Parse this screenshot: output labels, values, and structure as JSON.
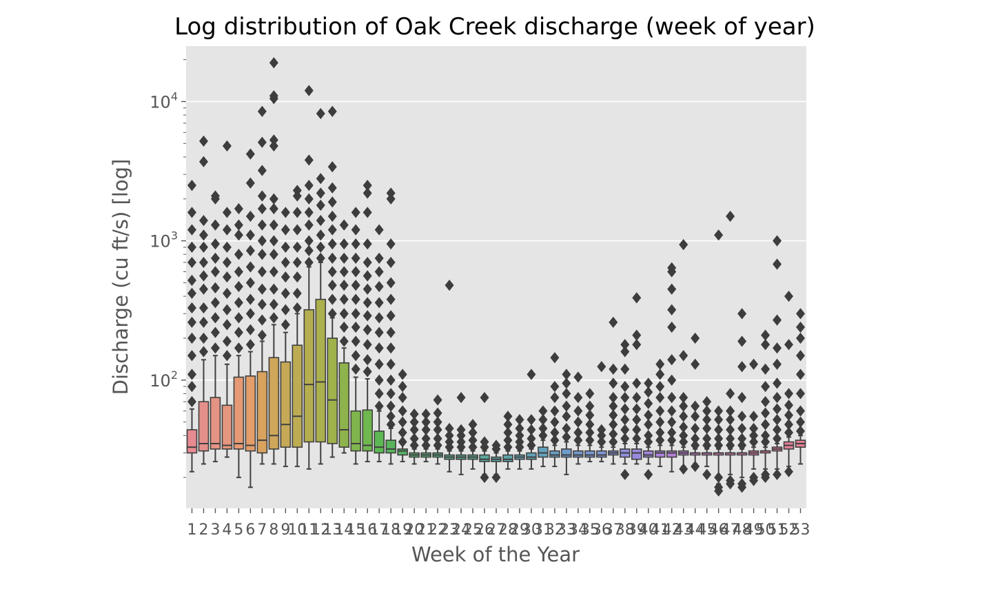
{
  "chart_data": {
    "type": "box",
    "title": "Log distribution of Oak Creek discharge (week of year)",
    "xlabel": "Week of the Year",
    "ylabel": "Discharge (cu ft/s) [log]",
    "y_scale": "log",
    "ylim": [
      12,
      25000
    ],
    "y_ticks": [
      {
        "value": 100,
        "base": "10",
        "exp": "2"
      },
      {
        "value": 1000,
        "base": "10",
        "exp": "3"
      },
      {
        "value": 10000,
        "base": "10",
        "exp": "4"
      }
    ],
    "grid": true,
    "background": "#e5e5e5",
    "grid_color": "#ffffff",
    "outlier_color": "#3d3d3d",
    "categories": [
      "1",
      "2",
      "3",
      "4",
      "5",
      "6",
      "7",
      "8",
      "9",
      "10",
      "11",
      "12",
      "13",
      "14",
      "15",
      "16",
      "17",
      "18",
      "19",
      "20",
      "21",
      "22",
      "23",
      "24",
      "25",
      "26",
      "27",
      "28",
      "29",
      "30",
      "31",
      "32",
      "33",
      "34",
      "35",
      "36",
      "37",
      "38",
      "39",
      "40",
      "41",
      "42",
      "43",
      "44",
      "45",
      "46",
      "47",
      "48",
      "49",
      "50",
      "51",
      "52",
      "53"
    ],
    "colors": [
      "#e58b91",
      "#e4908a",
      "#e49384",
      "#e5967e",
      "#e59a75",
      "#e39e6a",
      "#d9a35e",
      "#cfa65a",
      "#c6a957",
      "#bdac54",
      "#b4ae50",
      "#abb04e",
      "#9fb24c",
      "#8fb34c",
      "#80b54d",
      "#6fb74f",
      "#5db853",
      "#58b55c",
      "#57b266",
      "#57b06f",
      "#58ae78",
      "#58ad80",
      "#59ab87",
      "#5aaa8e",
      "#5ba995",
      "#5ca89c",
      "#5da7a2",
      "#5ea6a9",
      "#60a5b0",
      "#62a4b7",
      "#65a2bd",
      "#69a0c4",
      "#6e9ecb",
      "#749bd1",
      "#7a98d5",
      "#8195d8",
      "#8992da",
      "#918edb",
      "#9a8adb",
      "#a387db",
      "#ac83d9",
      "#b57fd6",
      "#be7cd2",
      "#c67acd",
      "#cd78c7",
      "#d477c0",
      "#d976b9",
      "#dd77b2",
      "#e078ab",
      "#e17aa4",
      "#e27c9e",
      "#e37e98",
      "#e48193"
    ],
    "boxes": [
      {
        "whislo": 22,
        "q1": 30,
        "med": 33,
        "q3": 44,
        "whishi": 62,
        "fliers": [
          70,
          90,
          110,
          150,
          200,
          260,
          330,
          420,
          520,
          700,
          900,
          1200,
          1600,
          2500
        ]
      },
      {
        "whislo": 25,
        "q1": 31,
        "med": 35,
        "q3": 70,
        "whishi": 140,
        "fliers": [
          160,
          200,
          260,
          330,
          450,
          560,
          700,
          900,
          1100,
          1400,
          3700,
          5200
        ]
      },
      {
        "whislo": 26,
        "q1": 32,
        "med": 35,
        "q3": 75,
        "whishi": 150,
        "fliers": [
          170,
          220,
          280,
          360,
          460,
          600,
          750,
          950,
          1300,
          2000,
          2100
        ]
      },
      {
        "whislo": 28,
        "q1": 32,
        "med": 34,
        "q3": 66,
        "whishi": 130,
        "fliers": [
          150,
          190,
          250,
          320,
          420,
          550,
          700,
          900,
          1200,
          1600,
          4800
        ]
      },
      {
        "whislo": 20,
        "q1": 32,
        "med": 35,
        "q3": 105,
        "whishi": 150,
        "fliers": [
          170,
          220,
          280,
          360,
          470,
          600,
          800,
          1100,
          1300,
          1700
        ]
      },
      {
        "whislo": 17,
        "q1": 31,
        "med": 34,
        "q3": 107,
        "whishi": 160,
        "fliers": [
          180,
          230,
          300,
          380,
          500,
          650,
          850,
          1100,
          1500,
          2600,
          4200
        ]
      },
      {
        "whislo": 25,
        "q1": 30,
        "med": 37,
        "q3": 115,
        "whishi": 190,
        "fliers": [
          210,
          270,
          350,
          450,
          600,
          800,
          1000,
          1300,
          1700,
          2100,
          3200,
          5100,
          8500
        ]
      },
      {
        "whislo": 25,
        "q1": 32,
        "med": 40,
        "q3": 145,
        "whishi": 250,
        "fliers": [
          280,
          350,
          450,
          600,
          800,
          1000,
          1300,
          1700,
          2000,
          4800,
          5300,
          10500,
          11000,
          19000
        ]
      },
      {
        "whislo": 24,
        "q1": 33,
        "med": 48,
        "q3": 135,
        "whishi": 220,
        "fliers": [
          250,
          320,
          420,
          550,
          700,
          900,
          1200,
          1600
        ]
      },
      {
        "whislo": 24,
        "q1": 33,
        "med": 55,
        "q3": 178,
        "whishi": 300,
        "fliers": [
          330,
          420,
          550,
          700,
          900,
          1200,
          1600,
          2100,
          2300
        ]
      },
      {
        "whislo": 23,
        "q1": 36,
        "med": 93,
        "q3": 320,
        "whishi": 650,
        "fliers": [
          700,
          850,
          1000,
          1300,
          1600,
          2000,
          2500,
          3800,
          12000
        ]
      },
      {
        "whislo": 25,
        "q1": 36,
        "med": 97,
        "q3": 380,
        "whishi": 700,
        "fliers": [
          750,
          900,
          1100,
          1400,
          1800,
          2200,
          2800,
          8200
        ]
      },
      {
        "whislo": 28,
        "q1": 35,
        "med": 72,
        "q3": 200,
        "whishi": 280,
        "fliers": [
          300,
          380,
          480,
          600,
          750,
          950,
          1200,
          1500,
          1900,
          2400,
          3400,
          8500
        ]
      },
      {
        "whislo": 30,
        "q1": 33,
        "med": 44,
        "q3": 133,
        "whishi": 170,
        "fliers": [
          190,
          240,
          300,
          380,
          480,
          600,
          750,
          950,
          1300
        ]
      },
      {
        "whislo": 25,
        "q1": 31,
        "med": 35,
        "q3": 60,
        "whishi": 105,
        "fliers": [
          120,
          150,
          190,
          240,
          300,
          380,
          480,
          600,
          750,
          950,
          1200,
          1600
        ]
      },
      {
        "whislo": 26,
        "q1": 31,
        "med": 34,
        "q3": 61,
        "whishi": 102,
        "fliers": [
          115,
          140,
          180,
          230,
          290,
          360,
          450,
          560,
          700,
          950,
          1600,
          2200,
          2500
        ]
      },
      {
        "whislo": 26,
        "q1": 30,
        "med": 33,
        "q3": 43,
        "whishi": 60,
        "fliers": [
          65,
          80,
          100,
          130,
          170,
          220,
          280,
          360,
          470,
          600,
          750,
          1200
        ]
      },
      {
        "whislo": 25,
        "q1": 30,
        "med": 32,
        "q3": 37,
        "whishi": 45,
        "fliers": [
          48,
          55,
          65,
          80,
          100,
          130,
          170,
          220,
          290,
          380,
          500,
          700,
          950,
          2000,
          2200
        ]
      },
      {
        "whislo": 26,
        "q1": 29,
        "med": 31,
        "q3": 32,
        "whishi": 35,
        "fliers": [
          36,
          42,
          50,
          60,
          75,
          90,
          110
        ]
      },
      {
        "whislo": 25,
        "q1": 28,
        "med": 29,
        "q3": 30,
        "whishi": 32,
        "fliers": [
          34,
          38,
          44,
          50,
          57
        ]
      },
      {
        "whislo": 26,
        "q1": 28,
        "med": 29,
        "q3": 30,
        "whishi": 32,
        "fliers": [
          34,
          38,
          44,
          50,
          57
        ]
      },
      {
        "whislo": 25,
        "q1": 28,
        "med": 29,
        "q3": 30,
        "whishi": 32,
        "fliers": [
          34,
          38,
          44,
          50,
          58,
          72
        ]
      },
      {
        "whislo": 22,
        "q1": 27,
        "med": 28,
        "q3": 29,
        "whishi": 31,
        "fliers": [
          33,
          36,
          40,
          45,
          480
        ]
      },
      {
        "whislo": 21,
        "q1": 27,
        "med": 28,
        "q3": 29,
        "whishi": 31,
        "fliers": [
          33,
          36,
          40,
          44,
          75
        ]
      },
      {
        "whislo": 23,
        "q1": 27,
        "med": 28,
        "q3": 29,
        "whishi": 31,
        "fliers": [
          33,
          37,
          42,
          48
        ]
      },
      {
        "whislo": 21,
        "q1": 26,
        "med": 27,
        "q3": 29,
        "whishi": 31,
        "fliers": [
          20,
          33,
          36,
          75
        ]
      },
      {
        "whislo": 21,
        "q1": 26,
        "med": 27,
        "q3": 28,
        "whishi": 30,
        "fliers": [
          20,
          32,
          34
        ]
      },
      {
        "whislo": 23,
        "q1": 26,
        "med": 27,
        "q3": 29,
        "whishi": 31,
        "fliers": [
          33,
          37,
          42,
          48,
          55
        ]
      },
      {
        "whislo": 23,
        "q1": 27,
        "med": 28,
        "q3": 29,
        "whishi": 31,
        "fliers": [
          33,
          36,
          40,
          45,
          52
        ]
      },
      {
        "whislo": 23,
        "q1": 27,
        "med": 28,
        "q3": 30,
        "whishi": 32,
        "fliers": [
          34,
          38,
          44,
          52,
          110
        ]
      },
      {
        "whislo": 24,
        "q1": 28,
        "med": 30,
        "q3": 33,
        "whishi": 37,
        "fliers": [
          40,
          45,
          52,
          60
        ]
      },
      {
        "whislo": 24,
        "q1": 28,
        "med": 29,
        "q3": 31,
        "whishi": 34,
        "fliers": [
          37,
          42,
          50,
          60,
          75,
          90,
          145
        ]
      },
      {
        "whislo": 21,
        "q1": 28,
        "med": 29,
        "q3": 32,
        "whishi": 36,
        "fliers": [
          39,
          45,
          55,
          65,
          80,
          95,
          110
        ]
      },
      {
        "whislo": 25,
        "q1": 28,
        "med": 29,
        "q3": 31,
        "whishi": 34,
        "fliers": [
          37,
          42,
          50,
          60,
          75,
          105
        ]
      },
      {
        "whislo": 26,
        "q1": 28,
        "med": 29,
        "q3": 31,
        "whishi": 34,
        "fliers": [
          37,
          42,
          48,
          56,
          65,
          80
        ]
      },
      {
        "whislo": 26,
        "q1": 28,
        "med": 29,
        "q3": 31,
        "whishi": 33,
        "fliers": [
          36,
          40,
          44,
          125
        ]
      },
      {
        "whislo": 25,
        "q1": 29,
        "med": 30,
        "q3": 31,
        "whishi": 33,
        "fliers": [
          36,
          41,
          48,
          56,
          65,
          75,
          95,
          120,
          260
        ]
      },
      {
        "whislo": 25,
        "q1": 28,
        "med": 30,
        "q3": 32,
        "whishi": 35,
        "fliers": [
          21,
          38,
          44,
          52,
          62,
          75,
          90,
          120,
          160,
          180
        ]
      },
      {
        "whislo": 25,
        "q1": 27,
        "med": 30,
        "q3": 32,
        "whishi": 35,
        "fliers": [
          38,
          44,
          52,
          62,
          75,
          95,
          180,
          210,
          390
        ]
      },
      {
        "whislo": 25,
        "q1": 28,
        "med": 29,
        "q3": 31,
        "whishi": 33,
        "fliers": [
          21,
          36,
          40,
          48,
          56,
          68,
          82,
          95
        ]
      },
      {
        "whislo": 24,
        "q1": 28,
        "med": 30,
        "q3": 31,
        "whishi": 34,
        "fliers": [
          37,
          42,
          50,
          60,
          75,
          90,
          110,
          130
        ]
      },
      {
        "whislo": 22,
        "q1": 28,
        "med": 30,
        "q3": 31,
        "whishi": 34,
        "fliers": [
          37,
          42,
          50,
          60,
          75,
          100,
          140,
          240,
          320,
          450,
          600,
          640
        ]
      },
      {
        "whislo": 24,
        "q1": 29,
        "med": 30,
        "q3": 31,
        "whishi": 33,
        "fliers": [
          23,
          36,
          40,
          46,
          55,
          65,
          75,
          150,
          940
        ]
      },
      {
        "whislo": 25,
        "q1": 29,
        "med": 30,
        "q3": 30,
        "whishi": 32,
        "fliers": [
          24,
          34,
          38,
          45,
          55,
          65,
          130,
          200
        ]
      },
      {
        "whislo": 24,
        "q1": 29,
        "med": 30,
        "q3": 30,
        "whishi": 32,
        "fliers": [
          21,
          34,
          38,
          45,
          52,
          60,
          70
        ]
      },
      {
        "whislo": 18,
        "q1": 29,
        "med": 30,
        "q3": 30,
        "whishi": 32,
        "fliers": [
          16,
          17,
          20,
          34,
          38,
          44,
          52,
          60,
          1100
        ]
      },
      {
        "whislo": 21,
        "q1": 29,
        "med": 30,
        "q3": 30,
        "whishi": 32,
        "fliers": [
          18,
          19,
          34,
          38,
          44,
          52,
          60,
          80,
          1500
        ]
      },
      {
        "whislo": 20,
        "q1": 29,
        "med": 30,
        "q3": 30,
        "whishi": 32,
        "fliers": [
          17,
          18,
          34,
          38,
          45,
          55,
          75,
          125,
          190,
          300
        ]
      },
      {
        "whislo": 23,
        "q1": 29,
        "med": 30,
        "q3": 31,
        "whishi": 33,
        "fliers": [
          19,
          20,
          36,
          40,
          45,
          55,
          130
        ]
      },
      {
        "whislo": 23,
        "q1": 30,
        "med": 31,
        "q3": 31,
        "whishi": 33,
        "fliers": [
          20,
          21,
          36,
          40,
          48,
          58,
          70,
          90,
          120,
          180,
          210
        ]
      },
      {
        "whislo": 23,
        "q1": 31,
        "med": 32,
        "q3": 33,
        "whishi": 35,
        "fliers": [
          21,
          38,
          44,
          52,
          62,
          75,
          95,
          130,
          170,
          270,
          680,
          1000
        ]
      },
      {
        "whislo": 24,
        "q1": 32,
        "med": 34,
        "q3": 36,
        "whishi": 39,
        "fliers": [
          22,
          42,
          48,
          56,
          66,
          80,
          180,
          400
        ]
      },
      {
        "whislo": 25,
        "q1": 33,
        "med": 35,
        "q3": 37,
        "whishi": 40,
        "fliers": [
          43,
          50,
          60,
          80,
          110,
          150,
          200,
          240,
          300
        ]
      }
    ],
    "extra_boxes_note": ""
  }
}
